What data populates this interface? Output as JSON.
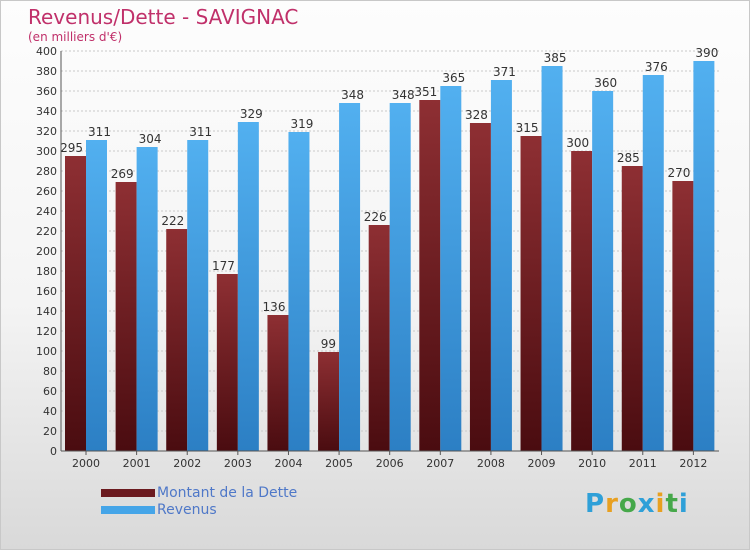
{
  "header": {
    "title": "Revenus/Dette - SAVIGNAC",
    "subtitle": "(en milliers d'€)"
  },
  "legend": {
    "items": [
      {
        "label": "Montant de la Dette",
        "color": "#6b1a1f"
      },
      {
        "label": "Revenus",
        "color": "#45a5e8"
      }
    ]
  },
  "logo": {
    "letters": [
      "P",
      "r",
      "o",
      "x",
      "i",
      "t",
      "i"
    ],
    "colors": [
      "#2fa0d8",
      "#e8a020",
      "#46a84a",
      "#2fa0d8",
      "#e8a020",
      "#46a84a",
      "#2fa0d8"
    ]
  },
  "chart_data": {
    "type": "bar",
    "categories": [
      "2000",
      "2001",
      "2002",
      "2003",
      "2004",
      "2005",
      "2006",
      "2007",
      "2008",
      "2009",
      "2010",
      "2011",
      "2012"
    ],
    "series": [
      {
        "name": "Montant de la Dette",
        "color": "#7a2226",
        "values": [
          295,
          269,
          222,
          177,
          136,
          99,
          226,
          351,
          328,
          315,
          300,
          285,
          270
        ]
      },
      {
        "name": "Revenus",
        "color": "#47a6e6",
        "values": [
          311,
          304,
          311,
          329,
          319,
          348,
          348,
          365,
          371,
          385,
          360,
          376,
          390
        ]
      }
    ],
    "ylim": [
      0,
      400
    ],
    "ytick_step": 20,
    "grid": true,
    "legend_position": "bottom-left"
  }
}
